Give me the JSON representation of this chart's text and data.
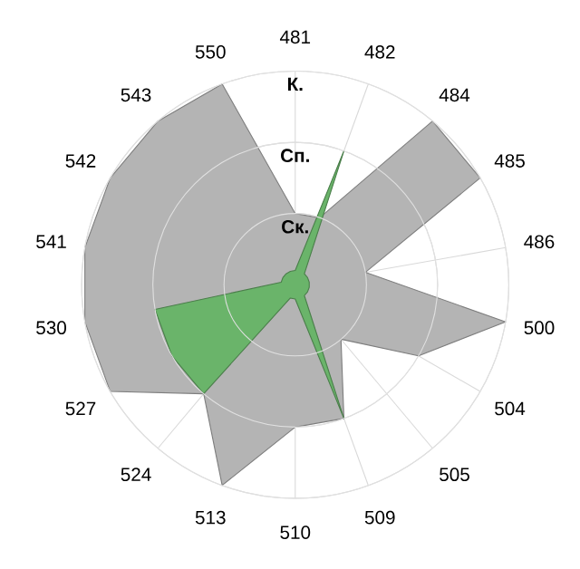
{
  "chart_data": {
    "type": "radar",
    "categories": [
      "481",
      "482",
      "484",
      "485",
      "486",
      "500",
      "504",
      "505",
      "509",
      "510",
      "513",
      "524",
      "527",
      "530",
      "541",
      "542",
      "543",
      "550"
    ],
    "series": [
      {
        "color": "#b4b4b4",
        "values": [
          1,
          1,
          3,
          3,
          1,
          3,
          2,
          1,
          2,
          2,
          3,
          2,
          3,
          3,
          3,
          3,
          3,
          3
        ]
      },
      {
        "color": "#6ab46a",
        "values": [
          0.2,
          2,
          0.2,
          0.2,
          0.2,
          0.2,
          0.2,
          0.2,
          2,
          0.2,
          0.2,
          2,
          2,
          2,
          0.2,
          0.2,
          0.2,
          0.2
        ]
      }
    ],
    "ylim": [
      0,
      3
    ],
    "yticks": [
      {
        "value": 1,
        "label": "Ск."
      },
      {
        "value": 2,
        "label": "Сп."
      },
      {
        "value": 3,
        "label": "К."
      }
    ],
    "grid": true,
    "marker": "none",
    "line_style": "solid"
  }
}
